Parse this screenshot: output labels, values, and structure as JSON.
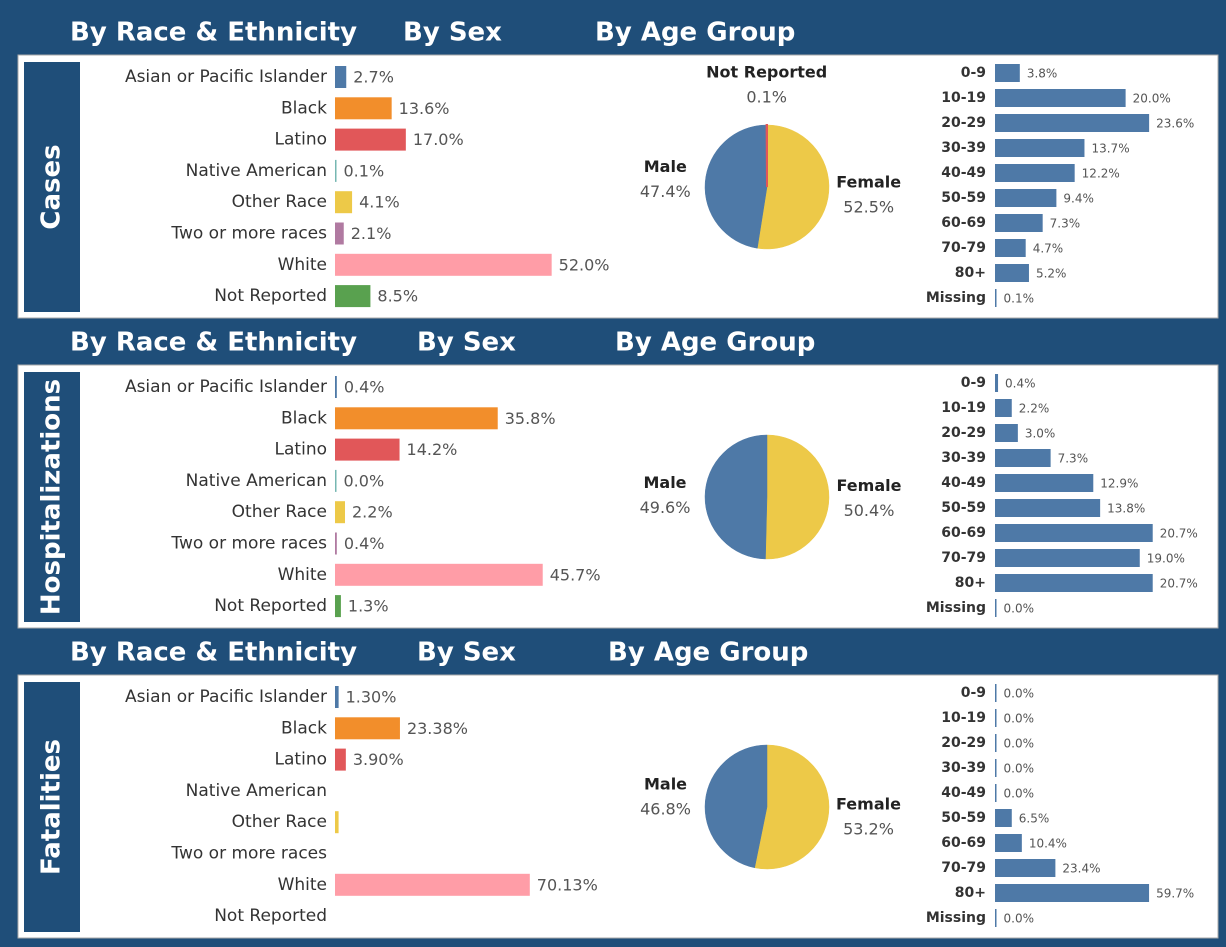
{
  "sections": [
    {
      "title": "Cases",
      "headers": [
        "By Race & Ethnicity",
        "By Sex",
        "By Age Group"
      ]
    },
    {
      "title": "Hospitalizations",
      "headers": [
        "By Race & Ethnicity",
        "By Sex",
        "By Age Group"
      ]
    },
    {
      "title": "Fatalities",
      "headers": [
        "By Race & Ethnicity",
        "By Sex",
        "By Age Group"
      ]
    }
  ],
  "chart_data": [
    {
      "type": "bar",
      "orientation": "horizontal",
      "categories": [
        "Asian or Pacific Islander",
        "Black",
        "Latino",
        "Native American",
        "Other Race",
        "Two or more races",
        "White",
        "Not Reported"
      ],
      "values": [
        2.7,
        13.6,
        17.0,
        0.1,
        4.1,
        2.1,
        52.0,
        8.5
      ],
      "value_labels": [
        "2.7%",
        "13.6%",
        "17.0%",
        "0.1%",
        "4.1%",
        "2.1%",
        "52.0%",
        "8.5%"
      ],
      "colors": [
        "#4e79a7",
        "#f28e2b",
        "#e15759",
        "#76b7b2",
        "#edc948",
        "#b07aa1",
        "#ff9da7",
        "#59a14f"
      ],
      "xlim": [
        0,
        60
      ]
    },
    {
      "type": "pie",
      "categories": [
        "Female",
        "Male",
        "Not Reported"
      ],
      "values": [
        52.5,
        47.4,
        0.1
      ],
      "value_labels": [
        "52.5%",
        "47.4%",
        "0.1%"
      ],
      "colors": [
        "#edc948",
        "#4e79a7",
        "#e15759"
      ]
    },
    {
      "type": "bar",
      "orientation": "horizontal",
      "categories": [
        "0-9",
        "10-19",
        "20-29",
        "30-39",
        "40-49",
        "50-59",
        "60-69",
        "70-79",
        "80+",
        "Missing"
      ],
      "values": [
        3.8,
        20.0,
        23.6,
        13.7,
        12.2,
        9.4,
        7.3,
        4.7,
        5.2,
        0.1
      ],
      "value_labels": [
        "3.8%",
        "20.0%",
        "23.6%",
        "13.7%",
        "12.2%",
        "9.4%",
        "7.3%",
        "4.7%",
        "5.2%",
        "0.1%"
      ],
      "color": "#4e79a7",
      "xlim": [
        0,
        24.5
      ]
    },
    {
      "type": "bar",
      "orientation": "horizontal",
      "categories": [
        "Asian or Pacific Islander",
        "Black",
        "Latino",
        "Native American",
        "Other Race",
        "Two or more races",
        "White",
        "Not Reported"
      ],
      "values": [
        0.4,
        35.8,
        14.2,
        0.0,
        2.2,
        0.4,
        45.7,
        1.3
      ],
      "value_labels": [
        "0.4%",
        "35.8%",
        "14.2%",
        "0.0%",
        "2.2%",
        "0.4%",
        "45.7%",
        "1.3%"
      ],
      "colors": [
        "#4e79a7",
        "#f28e2b",
        "#e15759",
        "#76b7b2",
        "#edc948",
        "#b07aa1",
        "#ff9da7",
        "#59a14f"
      ],
      "xlim": [
        0,
        55
      ]
    },
    {
      "type": "pie",
      "categories": [
        "Female",
        "Male"
      ],
      "values": [
        50.4,
        49.6
      ],
      "value_labels": [
        "50.4%",
        "49.6%"
      ],
      "colors": [
        "#edc948",
        "#4e79a7"
      ]
    },
    {
      "type": "bar",
      "orientation": "horizontal",
      "categories": [
        "0-9",
        "10-19",
        "20-29",
        "30-39",
        "40-49",
        "50-59",
        "60-69",
        "70-79",
        "80+",
        "Missing"
      ],
      "values": [
        0.4,
        2.2,
        3.0,
        7.3,
        12.9,
        13.8,
        20.7,
        19.0,
        20.7,
        0.0
      ],
      "value_labels": [
        "0.4%",
        "2.2%",
        "3.0%",
        "7.3%",
        "12.9%",
        "13.8%",
        "20.7%",
        "19.0%",
        "20.7%",
        "0.0%"
      ],
      "color": "#4e79a7",
      "xlim": [
        0,
        21
      ]
    },
    {
      "type": "bar",
      "orientation": "horizontal",
      "categories": [
        "Asian or Pacific Islander",
        "Black",
        "Latino",
        "Native American",
        "Other Race",
        "Two or more races",
        "White",
        "Not Reported"
      ],
      "values": [
        1.3,
        23.38,
        3.9,
        null,
        1.29,
        null,
        70.13,
        null
      ],
      "value_labels": [
        "1.30%",
        "23.38%",
        "3.90%",
        null,
        null,
        null,
        "70.13%",
        null
      ],
      "colors": [
        "#4e79a7",
        "#f28e2b",
        "#e15759",
        "#76b7b2",
        "#edc948",
        "#b07aa1",
        "#ff9da7",
        "#59a14f"
      ],
      "xlim": [
        0,
        90
      ]
    },
    {
      "type": "pie",
      "categories": [
        "Female",
        "Male"
      ],
      "values": [
        53.2,
        46.8
      ],
      "value_labels": [
        "53.2%",
        "46.8%"
      ],
      "colors": [
        "#edc948",
        "#4e79a7"
      ]
    },
    {
      "type": "bar",
      "orientation": "horizontal",
      "categories": [
        "0-9",
        "10-19",
        "20-29",
        "30-39",
        "40-49",
        "50-59",
        "60-69",
        "70-79",
        "80+",
        "Missing"
      ],
      "values": [
        0.0,
        0.0,
        0.0,
        0.0,
        0.0,
        6.5,
        10.4,
        23.4,
        59.7,
        0.0
      ],
      "value_labels": [
        "0.0%",
        "0.0%",
        "0.0%",
        "0.0%",
        "0.0%",
        "6.5%",
        "10.4%",
        "23.4%",
        "59.7%",
        "0.0%"
      ],
      "color": "#4e79a7",
      "xlim": [
        0,
        62
      ]
    }
  ]
}
